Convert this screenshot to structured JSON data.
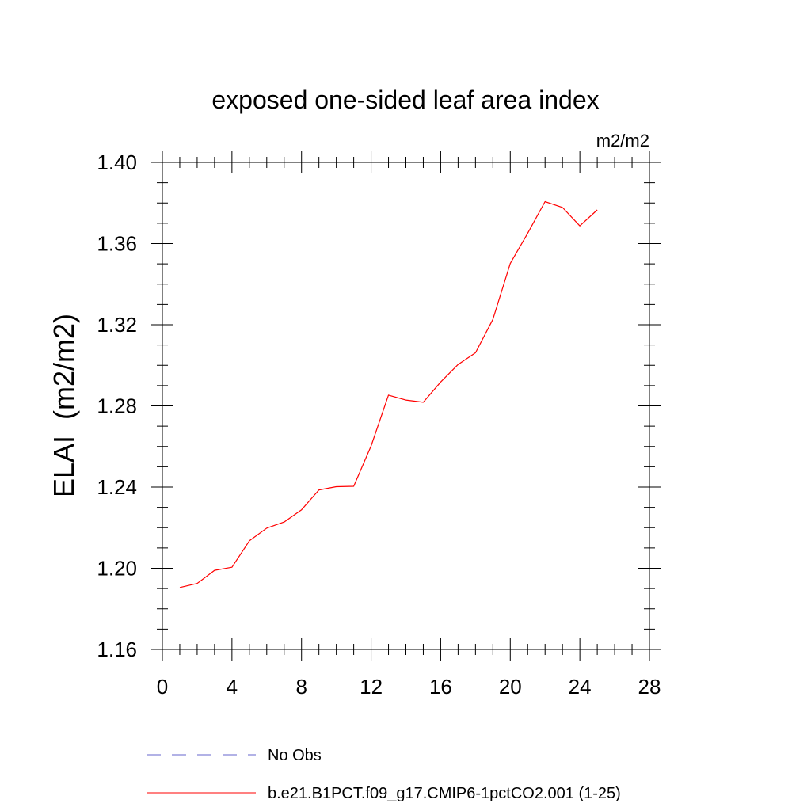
{
  "chart_data": {
    "type": "line",
    "title": "exposed one-sided leaf area index",
    "units": "m2/m2",
    "ylabel": "ELAI  (m2/m2)",
    "xlabel": "",
    "xlim": [
      0,
      28
    ],
    "ylim": [
      1.16,
      1.4
    ],
    "x_ticks": [
      "0",
      "4",
      "8",
      "12",
      "16",
      "20",
      "24",
      "28"
    ],
    "y_ticks": [
      "1.16",
      "1.20",
      "1.24",
      "1.28",
      "1.32",
      "1.36",
      "1.40"
    ],
    "series": [
      {
        "name": "b.e21.B1PCT.f09_g17.CMIP6-1pctCO2.001 (1-25)",
        "color": "#ff0000",
        "x": [
          1,
          2,
          3,
          4,
          5,
          6,
          7,
          8,
          9,
          10,
          11,
          12,
          13,
          14,
          15,
          16,
          17,
          18,
          19,
          20,
          21,
          22,
          23,
          24,
          25
        ],
        "values": [
          1.1905,
          1.1925,
          1.199,
          1.2005,
          1.2135,
          1.2198,
          1.2228,
          1.2288,
          1.2386,
          1.2402,
          1.2404,
          1.2603,
          1.2853,
          1.2829,
          1.2818,
          1.2918,
          1.3004,
          1.3062,
          1.3226,
          1.3502,
          1.3651,
          1.3807,
          1.3778,
          1.3687,
          1.3766
        ]
      }
    ],
    "legend": [
      {
        "label": "No Obs",
        "style": "dashed",
        "color": "#6666cc"
      },
      {
        "label": "b.e21.B1PCT.f09_g17.CMIP6-1pctCO2.001 (1-25)",
        "style": "solid",
        "color": "#ff0000"
      }
    ],
    "legend_position": "bottom",
    "grid": false
  }
}
